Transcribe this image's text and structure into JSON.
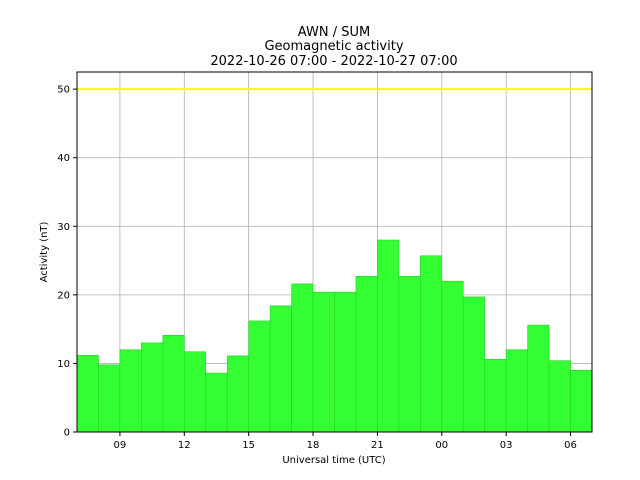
{
  "chart_data": {
    "type": "bar",
    "title": [
      "AWN / SUM",
      "Geomagnetic activity",
      "2022-10-26 07:00 - 2022-10-27 07:00"
    ],
    "xlabel": "Universal time (UTC)",
    "ylabel": "Activity (nT)",
    "x_start_hour": 7,
    "ylim": [
      0,
      52.5
    ],
    "yticks": [
      0,
      10,
      20,
      30,
      40,
      50
    ],
    "xticks": [
      {
        "hour": 9,
        "label": "09"
      },
      {
        "hour": 12,
        "label": "12"
      },
      {
        "hour": 15,
        "label": "15"
      },
      {
        "hour": 18,
        "label": "18"
      },
      {
        "hour": 21,
        "label": "21"
      },
      {
        "hour": 24,
        "label": "00"
      },
      {
        "hour": 27,
        "label": "03"
      },
      {
        "hour": 30,
        "label": "06"
      }
    ],
    "values": [
      11.2,
      9.8,
      12.0,
      13.0,
      14.1,
      11.7,
      8.6,
      11.1,
      16.2,
      18.4,
      21.6,
      20.4,
      20.4,
      22.7,
      28.0,
      22.7,
      25.7,
      22.0,
      19.7,
      10.6,
      12.0,
      15.6,
      10.4,
      9.0
    ],
    "threshold": 50,
    "grid": true,
    "colors": {
      "bar": "#33ff33",
      "bar_edge": "#2ecc2e",
      "threshold": "#ffff00",
      "grid": "#b0b0b0"
    }
  }
}
